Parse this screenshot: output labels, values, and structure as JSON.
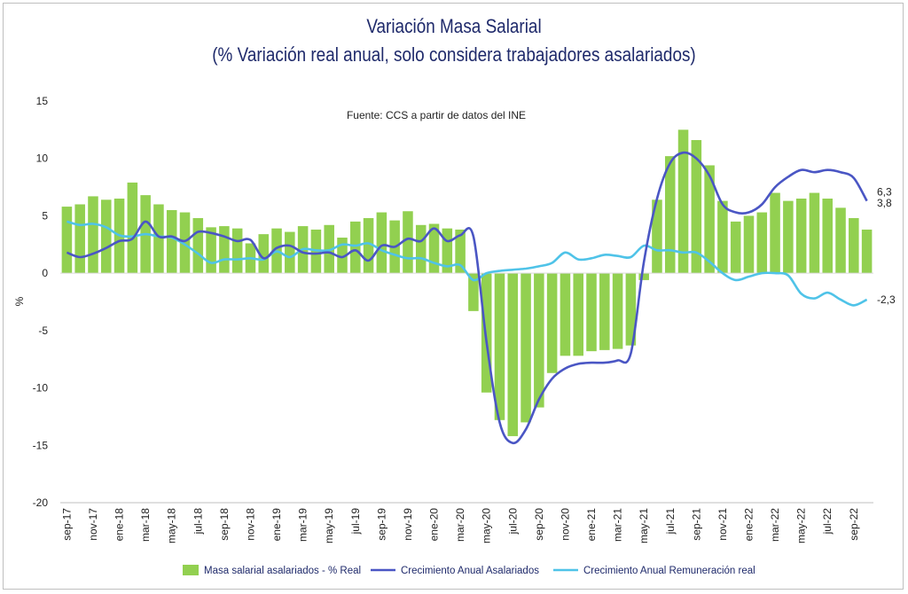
{
  "chart_data": {
    "type": "bar",
    "title": "Variación Masa Salarial",
    "subtitle": "(% Variación real anual, solo considera trabajadores asalariados)",
    "source_note": "Fuente: CCS a partir de datos del INE",
    "ylabel": "%",
    "ylim": [
      -20,
      15
    ],
    "yticks": [
      15,
      10,
      5,
      0,
      -5,
      -10,
      -15,
      -20
    ],
    "grid": false,
    "legend_position": "bottom",
    "x_tick_labels": [
      "sep-17",
      "nov-17",
      "ene-18",
      "mar-18",
      "may-18",
      "jul-18",
      "sep-18",
      "nov-18",
      "ene-19",
      "mar-19",
      "may-19",
      "jul-19",
      "sep-19",
      "nov-19",
      "ene-20",
      "mar-20",
      "may-20",
      "jul-20",
      "sep-20",
      "nov-20",
      "ene-21",
      "mar-21",
      "may-21",
      "jul-21",
      "sep-21",
      "nov-21",
      "ene-22",
      "mar-22",
      "may-22",
      "jul-22",
      "sep-22"
    ],
    "series": [
      {
        "name": "Masa salarial asalariados - % Real",
        "kind": "bar",
        "color": "#92d050",
        "values": [
          5.8,
          6.0,
          6.7,
          6.4,
          6.5,
          7.9,
          6.8,
          6.0,
          5.5,
          5.3,
          4.8,
          4.0,
          4.1,
          3.9,
          2.6,
          3.4,
          3.9,
          3.6,
          4.1,
          3.8,
          4.2,
          3.1,
          4.5,
          4.8,
          5.3,
          4.6,
          5.4,
          4.2,
          4.3,
          3.9,
          3.8,
          -3.3,
          -10.4,
          -12.8,
          -14.2,
          -13.0,
          -11.7,
          -8.7,
          -7.2,
          -7.2,
          -6.8,
          -6.7,
          -6.6,
          -6.3,
          -0.6,
          6.4,
          10.2,
          12.5,
          11.6,
          9.4,
          6.3,
          4.5,
          5.0,
          5.3,
          7.0,
          6.3,
          6.5,
          7.0,
          6.5,
          5.7,
          4.8,
          3.8
        ],
        "end_label": "3,8"
      },
      {
        "name": "Crecimiento Anual Asalariados",
        "kind": "line",
        "color": "#4a56c4",
        "values": [
          1.8,
          1.4,
          1.7,
          2.2,
          2.8,
          3.0,
          4.5,
          3.2,
          3.2,
          2.8,
          3.6,
          3.5,
          3.2,
          2.8,
          2.9,
          1.3,
          2.2,
          2.4,
          1.8,
          1.7,
          1.8,
          1.4,
          2.0,
          1.1,
          2.4,
          2.3,
          3.0,
          2.8,
          3.9,
          2.8,
          3.3,
          3.2,
          -6.0,
          -13.0,
          -14.8,
          -13.6,
          -11.0,
          -9.2,
          -8.3,
          -7.9,
          -7.8,
          -7.8,
          -7.6,
          -7.0,
          1.0,
          6.5,
          9.6,
          10.5,
          10.0,
          8.5,
          6.0,
          5.3,
          5.3,
          6.0,
          7.5,
          8.4,
          9.0,
          8.8,
          9.0,
          8.8,
          8.3,
          6.3
        ],
        "end_label": "6,3"
      },
      {
        "name": "Crecimiento Anual Remuneración real",
        "kind": "line",
        "color": "#4fc3e8",
        "values": [
          4.5,
          4.2,
          4.3,
          4.0,
          3.3,
          3.2,
          3.4,
          3.2,
          3.1,
          2.5,
          1.7,
          0.9,
          1.2,
          1.2,
          1.3,
          1.2,
          1.9,
          1.4,
          2.1,
          2.0,
          2.0,
          2.5,
          2.4,
          2.6,
          2.0,
          1.6,
          1.3,
          1.3,
          0.9,
          0.6,
          0.7,
          -0.6,
          0.0,
          0.2,
          0.3,
          0.4,
          0.6,
          0.9,
          1.8,
          1.2,
          1.3,
          1.6,
          1.5,
          1.4,
          2.4,
          2.0,
          2.0,
          1.8,
          1.8,
          1.0,
          0.0,
          -0.6,
          -0.3,
          0.0,
          0.0,
          -0.2,
          -1.8,
          -2.2,
          -1.7,
          -2.3,
          -2.8,
          -2.3
        ],
        "end_label": "-2,3"
      }
    ]
  }
}
